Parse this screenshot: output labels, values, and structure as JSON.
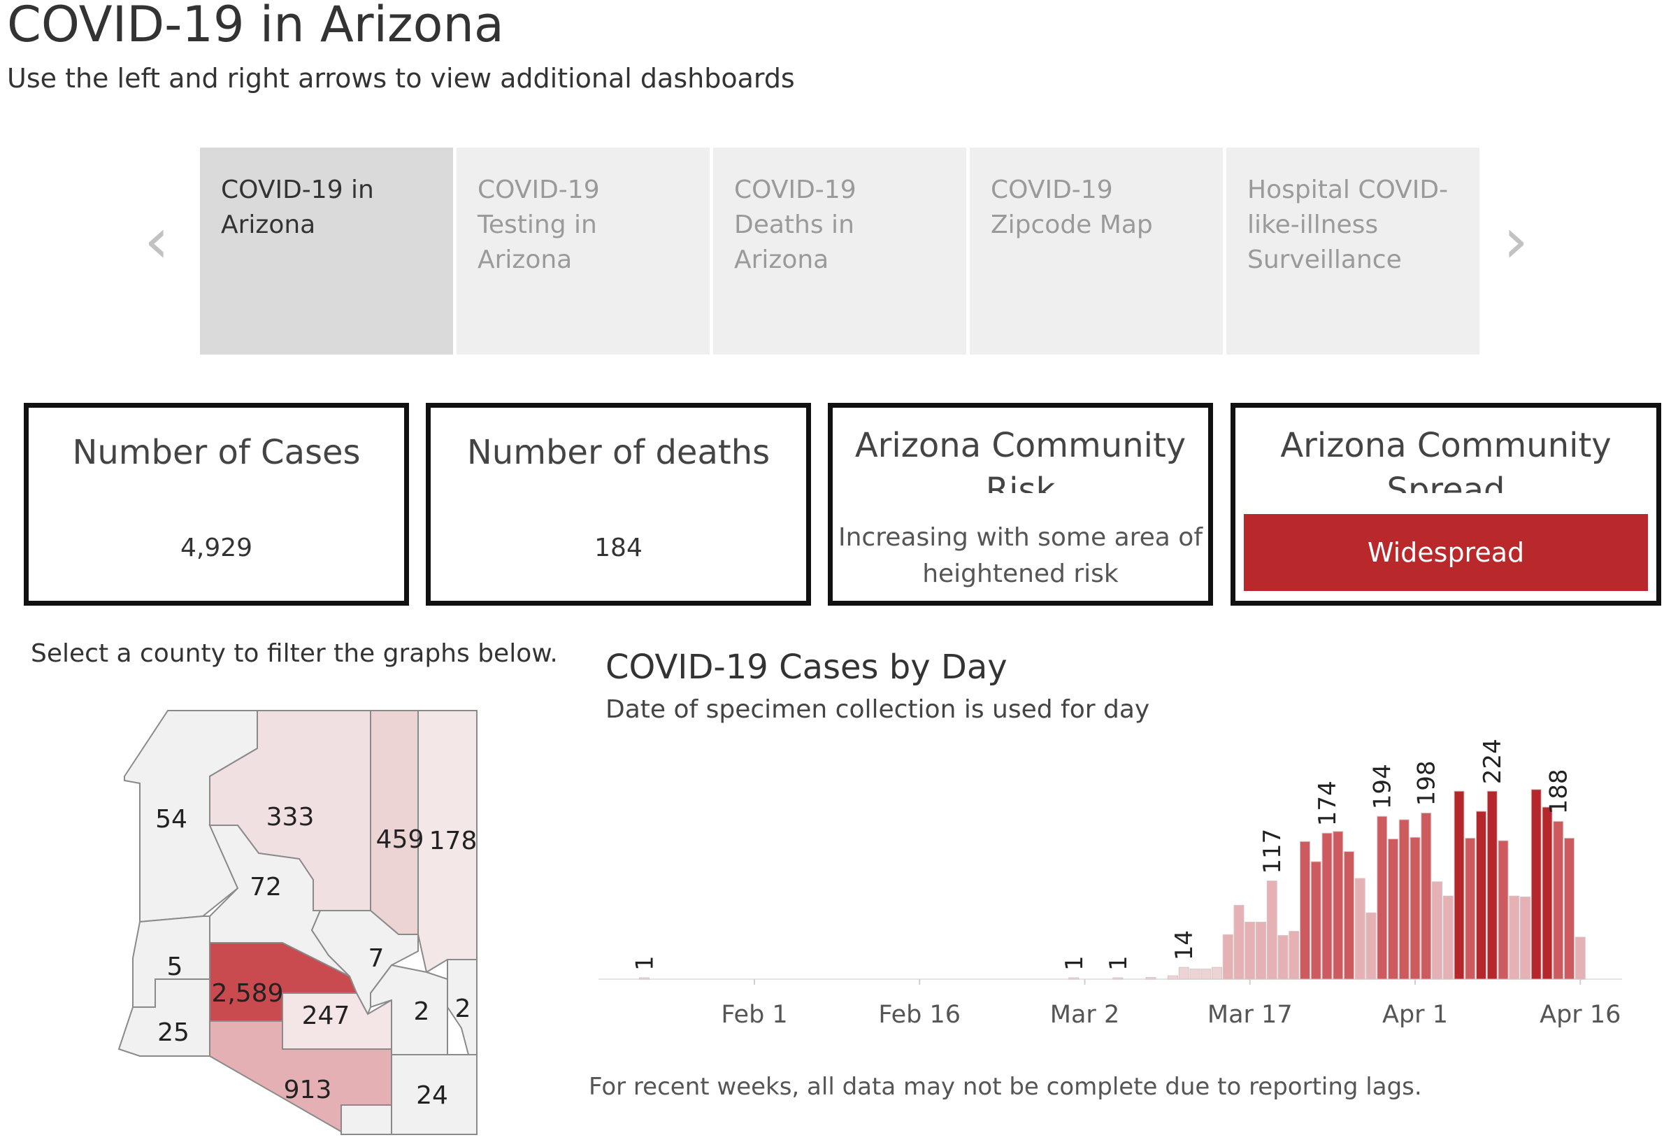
{
  "header": {
    "title": "COVID-19 in Arizona",
    "subtitle": "Use the left and right arrows to view additional dashboards"
  },
  "nav": {
    "prev_arrow": "‹",
    "next_arrow": "›",
    "tabs": [
      {
        "label": "COVID-19 in Arizona",
        "active": true
      },
      {
        "label": "COVID-19 Testing in Arizona",
        "active": false
      },
      {
        "label": "COVID-19 Deaths in Arizona",
        "active": false
      },
      {
        "label": "COVID-19 Zipcode Map",
        "active": false
      },
      {
        "label": "Hospital COVID-like-illness Surveillance",
        "active": false
      }
    ]
  },
  "kpis": {
    "cases": {
      "title": "Number of Cases",
      "value": "4,929"
    },
    "deaths": {
      "title": "Number of deaths",
      "value": "184"
    },
    "risk": {
      "title": "Arizona Community Risk",
      "value": "Increasing with some area of heightened risk"
    },
    "spread": {
      "title": "Arizona Community Spread",
      "value": "Widespread",
      "color": "#b9282b"
    }
  },
  "map": {
    "instruction": "Select a county to filter the graphs below.",
    "counties": [
      {
        "id": "mohave",
        "value": "54"
      },
      {
        "id": "coconino",
        "value": "333"
      },
      {
        "id": "navajo",
        "value": "459"
      },
      {
        "id": "apache",
        "value": "178"
      },
      {
        "id": "yavapai",
        "value": "72"
      },
      {
        "id": "la-paz",
        "value": "5"
      },
      {
        "id": "gila",
        "value": "7"
      },
      {
        "id": "maricopa",
        "value": "2,589"
      },
      {
        "id": "pinal",
        "value": "247"
      },
      {
        "id": "graham",
        "value": "2"
      },
      {
        "id": "greenlee",
        "value": "2"
      },
      {
        "id": "yuma",
        "value": "25"
      },
      {
        "id": "pima",
        "value": "913"
      },
      {
        "id": "cochise",
        "value": "24"
      },
      {
        "id": "santa-cruz",
        "value": ""
      }
    ]
  },
  "chart": {
    "title": "COVID-19 Cases by Day",
    "subtitle": "Date of specimen collection is used for day",
    "footnote": "For recent weeks, all data may not be complete due to reporting lags."
  },
  "chart_data": {
    "type": "bar",
    "x_start": "2020-01-22",
    "x_ticks": [
      "Feb 1",
      "Feb 16",
      "Mar 2",
      "Mar 17",
      "Apr 1",
      "Apr 16"
    ],
    "x_tick_dates": [
      "2020-02-01",
      "2020-02-16",
      "2020-03-02",
      "2020-03-17",
      "2020-04-01",
      "2020-04-16"
    ],
    "ylim": [
      0,
      250
    ],
    "grid": false,
    "bars": [
      {
        "date": "2020-01-22",
        "value": 1,
        "label": "1"
      },
      {
        "date": "2020-03-01",
        "value": 1,
        "label": "1"
      },
      {
        "date": "2020-03-05",
        "value": 1,
        "label": "1"
      },
      {
        "date": "2020-03-08",
        "value": 2
      },
      {
        "date": "2020-03-10",
        "value": 4
      },
      {
        "date": "2020-03-11",
        "value": 14,
        "label": "14"
      },
      {
        "date": "2020-03-12",
        "value": 12
      },
      {
        "date": "2020-03-13",
        "value": 12
      },
      {
        "date": "2020-03-14",
        "value": 14
      },
      {
        "date": "2020-03-15",
        "value": 53
      },
      {
        "date": "2020-03-16",
        "value": 88
      },
      {
        "date": "2020-03-17",
        "value": 68
      },
      {
        "date": "2020-03-18",
        "value": 68
      },
      {
        "date": "2020-03-19",
        "value": 117,
        "label": "117"
      },
      {
        "date": "2020-03-20",
        "value": 52
      },
      {
        "date": "2020-03-21",
        "value": 57
      },
      {
        "date": "2020-03-22",
        "value": 164
      },
      {
        "date": "2020-03-23",
        "value": 140
      },
      {
        "date": "2020-03-24",
        "value": 174,
        "label": "174"
      },
      {
        "date": "2020-03-25",
        "value": 176
      },
      {
        "date": "2020-03-26",
        "value": 152
      },
      {
        "date": "2020-03-27",
        "value": 120
      },
      {
        "date": "2020-03-28",
        "value": 79
      },
      {
        "date": "2020-03-29",
        "value": 194,
        "label": "194"
      },
      {
        "date": "2020-03-30",
        "value": 167
      },
      {
        "date": "2020-03-31",
        "value": 190
      },
      {
        "date": "2020-04-01",
        "value": 169
      },
      {
        "date": "2020-04-02",
        "value": 198,
        "label": "198"
      },
      {
        "date": "2020-04-03",
        "value": 116
      },
      {
        "date": "2020-04-04",
        "value": 99
      },
      {
        "date": "2020-04-05",
        "value": 224
      },
      {
        "date": "2020-04-06",
        "value": 168
      },
      {
        "date": "2020-04-07",
        "value": 200
      },
      {
        "date": "2020-04-08",
        "value": 224,
        "label": "224"
      },
      {
        "date": "2020-04-09",
        "value": 165
      },
      {
        "date": "2020-04-10",
        "value": 99
      },
      {
        "date": "2020-04-11",
        "value": 98
      },
      {
        "date": "2020-04-12",
        "value": 226
      },
      {
        "date": "2020-04-13",
        "value": 205
      },
      {
        "date": "2020-04-14",
        "value": 188,
        "label": "188"
      },
      {
        "date": "2020-04-15",
        "value": 168
      },
      {
        "date": "2020-04-16",
        "value": 50
      }
    ],
    "colors": {
      "dark": "#b5272a",
      "mid": "#cc5a5e",
      "light": "#e6b1b4",
      "faint": "#ecd3d4"
    }
  }
}
